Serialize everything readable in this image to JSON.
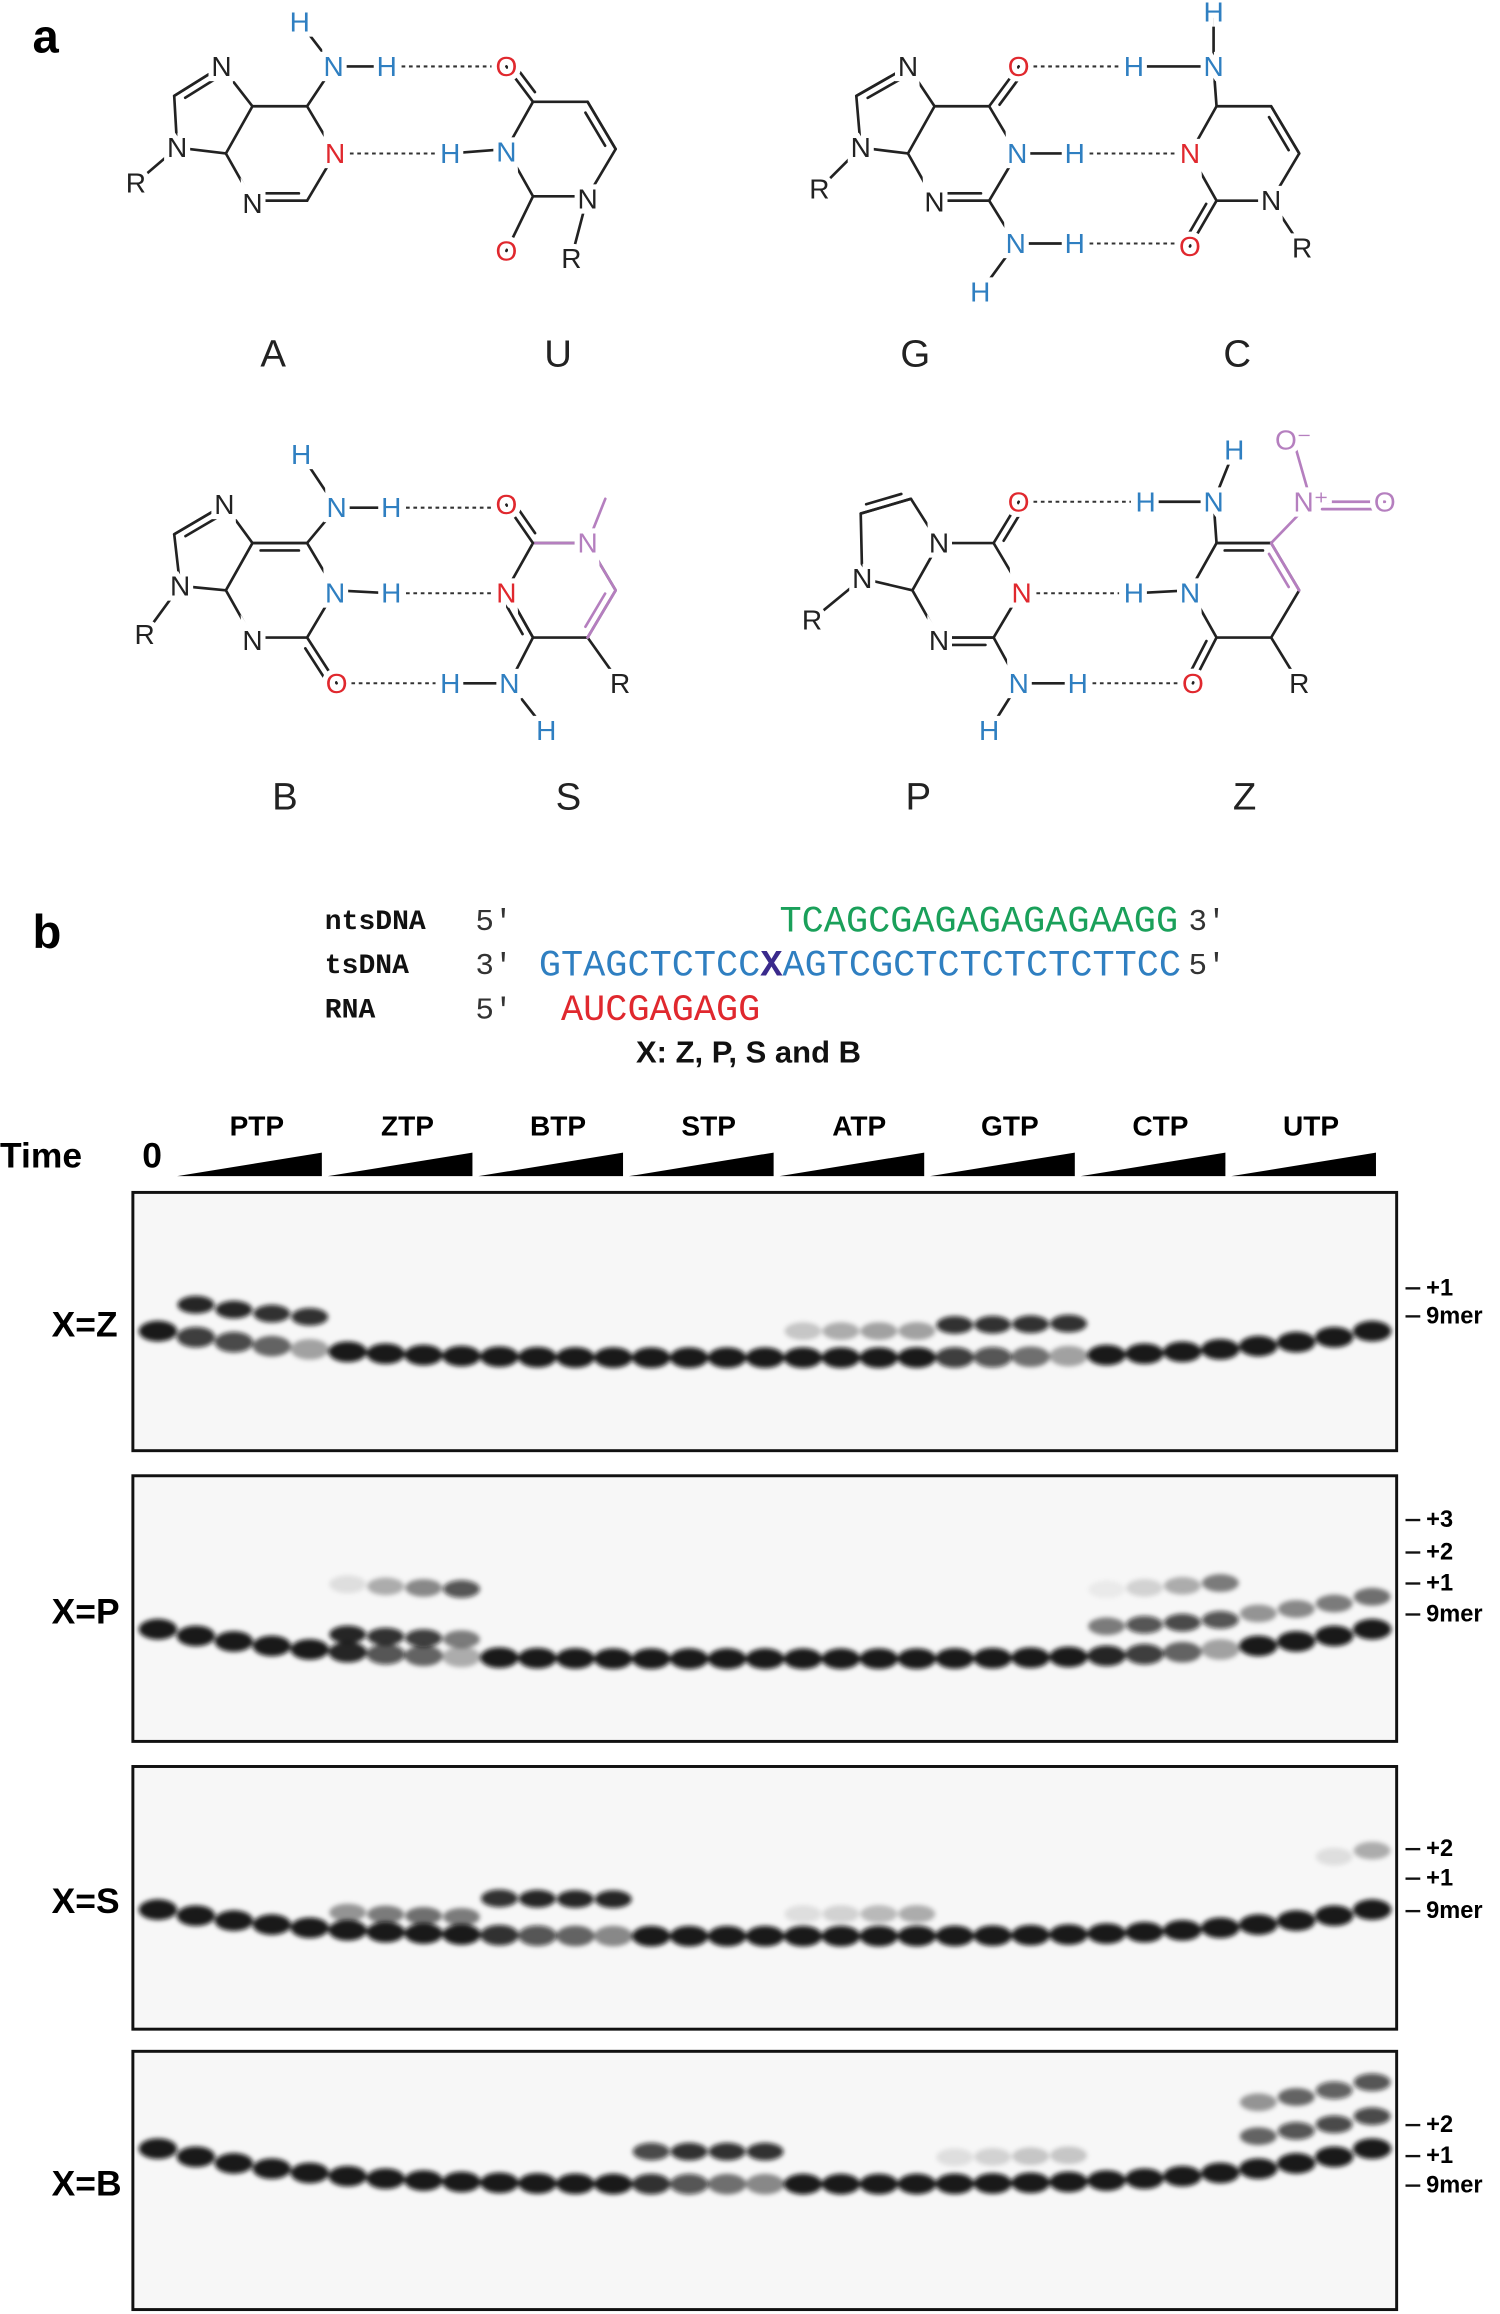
{
  "panel_labels": [
    "a",
    "b"
  ],
  "base_pairs": [
    {
      "left": "A",
      "right": "U",
      "atoms": [
        "N",
        "N",
        "N",
        "N",
        "N",
        "H",
        "H",
        "R",
        "O",
        "N",
        "H",
        "N",
        "O",
        "R"
      ]
    },
    {
      "left": "G",
      "right": "C",
      "atoms": [
        "N",
        "N",
        "N",
        "R",
        "O",
        "N",
        "H",
        "N",
        "H",
        "H",
        "H",
        "N",
        "H",
        "N",
        "O",
        "N",
        "R"
      ]
    },
    {
      "left": "B",
      "right": "S",
      "atoms": [
        "N",
        "N",
        "N",
        "R",
        "N",
        "H",
        "H",
        "N",
        "H",
        "O",
        "O",
        "N",
        "N",
        "N",
        "H",
        "H",
        "R"
      ]
    },
    {
      "left": "P",
      "right": "Z",
      "atoms": [
        "N",
        "N",
        "N",
        "R",
        "O",
        "N",
        "N",
        "H",
        "H",
        "H",
        "N",
        "H",
        "N⁺",
        "O⁻",
        "O",
        "H",
        "N",
        "O",
        "R"
      ]
    }
  ],
  "sequence": {
    "rows": [
      {
        "name": "ntsDNA",
        "left_end": "5′",
        "parts": [
          "TCAGCGAGAGAGAGAAGG"
        ],
        "right_end": "3′"
      },
      {
        "name": "tsDNA",
        "left_end": "3′",
        "parts": [
          "GTAGCTCTCC",
          "X",
          "AGTCGCTCTCTCTCTTCC"
        ],
        "right_end": "5′"
      },
      {
        "name": "RNA",
        "left_end": "5′",
        "parts": [
          "AUCGAGAGG"
        ]
      }
    ],
    "note": "X: Z, P, S and B"
  },
  "gel": {
    "time_label": "Time",
    "zero_label": "0",
    "groups": [
      "PTP",
      "ZTP",
      "BTP",
      "STP",
      "ATP",
      "GTP",
      "CTP",
      "UTP"
    ],
    "panels": [
      {
        "label": "X=Z",
        "markers": [
          "+1",
          "9mer"
        ]
      },
      {
        "label": "X=P",
        "markers": [
          "+3",
          "+2",
          "+1",
          "9mer"
        ]
      },
      {
        "label": "X=S",
        "markers": [
          "+2",
          "+1",
          "9mer"
        ]
      },
      {
        "label": "X=B",
        "markers": [
          "+2",
          "+1",
          "9mer"
        ]
      }
    ]
  }
}
